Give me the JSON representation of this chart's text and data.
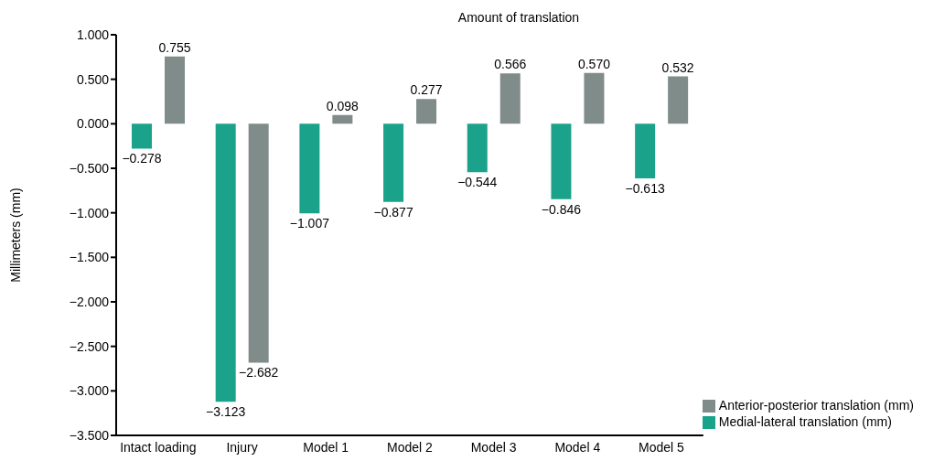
{
  "chart_data": {
    "type": "bar",
    "title": "Amount of translation",
    "ylabel": "Millimeters (mm)",
    "categories": [
      "Intact loading",
      "Injury",
      "Model 1",
      "Model 2",
      "Model 3",
      "Model 4",
      "Model 5"
    ],
    "series": [
      {
        "name": "Medial-lateral translation (mm)",
        "color": "#1aa38a",
        "values": [
          -0.278,
          -3.123,
          -1.007,
          -0.877,
          -0.544,
          -0.846,
          -0.613
        ],
        "value_labels": [
          "−0.278",
          "−3.123",
          "−1.007",
          "−0.877",
          "−0.544",
          "−0.846",
          "−0.613"
        ]
      },
      {
        "name": "Anterior-posterior translation (mm)",
        "color": "#7f8c8a",
        "values": [
          0.755,
          -2.682,
          0.098,
          0.277,
          0.566,
          0.57,
          0.532
        ],
        "value_labels": [
          "0.755",
          "−2.682",
          "0.098",
          "0.277",
          "0.566",
          "0.570",
          "0.532"
        ]
      }
    ],
    "ylim": [
      -3.5,
      1.0
    ],
    "yticks": [
      {
        "value": 1.0,
        "label": "1.000"
      },
      {
        "value": 0.5,
        "label": "0.500"
      },
      {
        "value": 0,
        "label": "0.000"
      },
      {
        "value": -0.5,
        "label": "−0.500"
      },
      {
        "value": -1.0,
        "label": "−1.000"
      },
      {
        "value": -1.5,
        "label": "−1.500"
      },
      {
        "value": -2.0,
        "label": "−2.000"
      },
      {
        "value": -2.5,
        "label": "−2.500"
      },
      {
        "value": -3.0,
        "label": "−3.000"
      },
      {
        "value": -3.5,
        "label": "−3.500"
      }
    ],
    "legend": "bottom right"
  }
}
